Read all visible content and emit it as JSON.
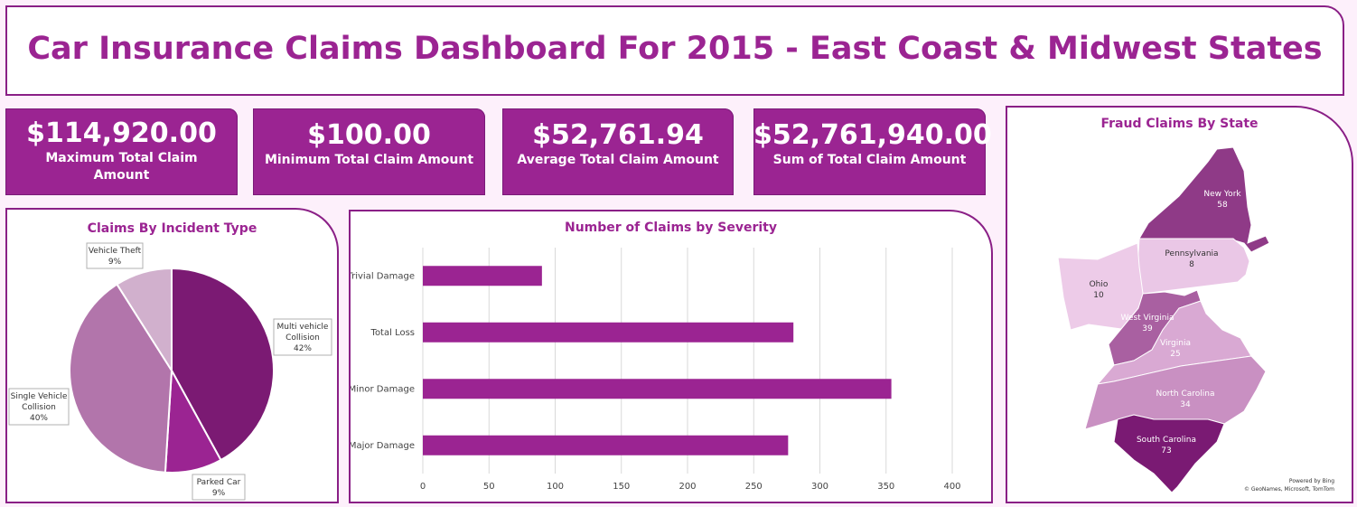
{
  "dashboard": {
    "title": "Car Insurance Claims Dashboard For 2015 - East Coast & Midwest States"
  },
  "kpis": {
    "max": {
      "value": "$114,920.00",
      "label": "Maximum Total Claim Amount"
    },
    "min": {
      "value": "$100.00",
      "label": "Minimum Total Claim Amount"
    },
    "avg": {
      "value": "$52,761.94",
      "label": "Average Total Claim Amount"
    },
    "sum": {
      "value": "$52,761,940.00",
      "label": "Sum of Total Claim Amount"
    }
  },
  "colors": {
    "brand": "#9b2492",
    "panel_border": "#8a1f86",
    "background": "#fdf0fb",
    "bar": "#9b2492"
  },
  "chart_data": [
    {
      "type": "pie",
      "title": "Claims By Incident Type",
      "slices": [
        {
          "label": "Multi vehicle Collision",
          "value": 42,
          "pct_label": "42%",
          "color": "#7b1a73"
        },
        {
          "label": "Parked Car",
          "value": 9,
          "pct_label": "9%",
          "color": "#9b2492"
        },
        {
          "label": "Single Vehicle Collision",
          "value": 40,
          "pct_label": "40%",
          "color": "#b275ab"
        },
        {
          "label": "Vehicle Theft",
          "value": 9,
          "pct_label": "9%",
          "color": "#d1b0cd"
        }
      ]
    },
    {
      "type": "bar",
      "orientation": "horizontal",
      "title": "Number of Claims by Severity",
      "categories": [
        "Trivial Damage",
        "Total Loss",
        "Minor Damage",
        "Major Damage"
      ],
      "values": [
        90,
        280,
        354,
        276
      ],
      "xlim": [
        0,
        400
      ],
      "xticks": [
        0,
        50,
        100,
        150,
        200,
        250,
        300,
        350,
        400
      ],
      "grid": true
    },
    {
      "type": "map",
      "title": "Fraud Claims By State",
      "regions": [
        {
          "state": "New York",
          "value": 58
        },
        {
          "state": "Pennsylvania",
          "value": 8
        },
        {
          "state": "Ohio",
          "value": 10
        },
        {
          "state": "West Virginia",
          "value": 39
        },
        {
          "state": "Virginia",
          "value": 25
        },
        {
          "state": "North Carolina",
          "value": 34
        },
        {
          "state": "South Carolina",
          "value": 73
        }
      ],
      "attribution": [
        "Powered by Bing",
        "© GeoNames, Microsoft, TomTom"
      ]
    }
  ]
}
